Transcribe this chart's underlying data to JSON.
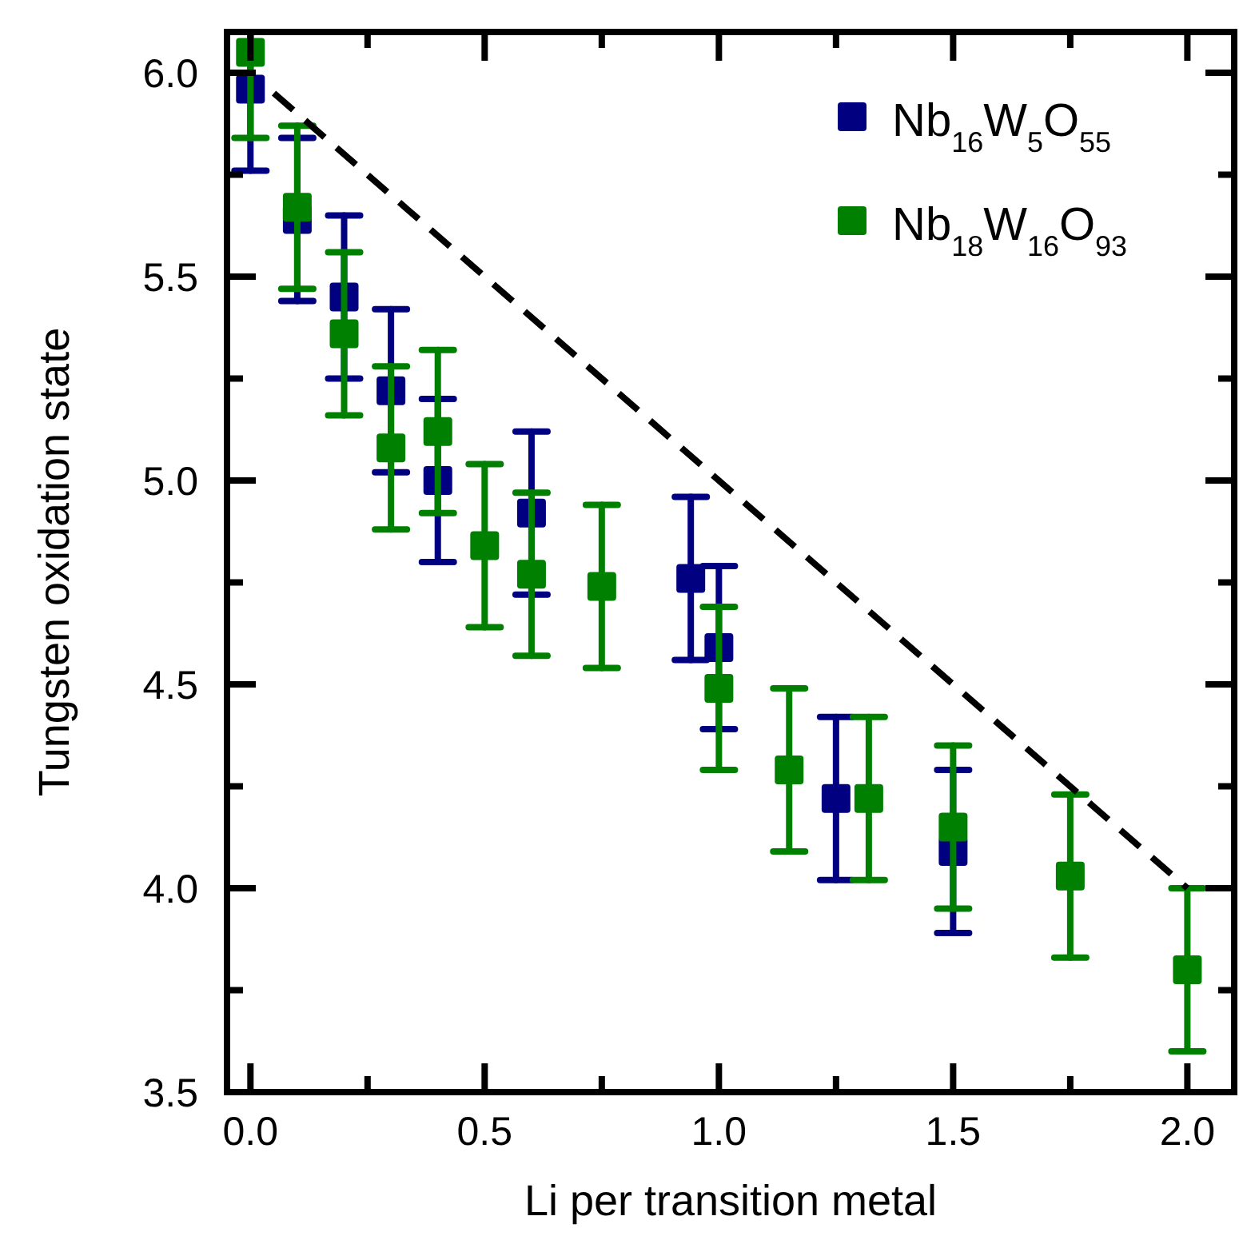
{
  "chart_data": {
    "type": "scatter",
    "xlabel": "Li per transition metal",
    "ylabel": "Tungsten oxidation state",
    "xlim": [
      -0.05,
      2.1
    ],
    "ylim": [
      3.5,
      6.1
    ],
    "xticks": [
      {
        "value": 0.25,
        "label": null
      },
      {
        "value": 0,
        "label": "0.0"
      },
      0.5,
      {
        "value": 0.75,
        "label": null
      },
      {
        "value": 1,
        "label": "1.0"
      },
      {
        "value": 1.25,
        "label": null
      },
      1.5,
      {
        "value": 1.75,
        "label": null
      },
      {
        "value": 2,
        "label": "2.0"
      }
    ],
    "yticks": [
      3.5,
      {
        "value": 3.75,
        "label": null
      },
      {
        "value": 4,
        "label": "4.0"
      },
      {
        "value": 4.25,
        "label": null
      },
      4.5,
      {
        "value": 4.75,
        "label": null
      },
      {
        "value": 5,
        "label": "5.0"
      },
      {
        "value": 5.25,
        "label": null
      },
      5.5,
      {
        "value": 5.75,
        "label": null
      },
      {
        "value": 6,
        "label": "6.0"
      }
    ],
    "marker": "square",
    "legend": "top right",
    "grid": false,
    "series": [
      {
        "name": "Nb$_{16}$W$_{5}$O$_{55}$",
        "color": "#000080",
        "x": [
          0,
          0.1,
          0.2,
          0.3,
          0.4,
          0.6,
          0.94,
          1.0,
          1.25,
          1.5
        ],
        "values": [
          5.96,
          5.64,
          5.45,
          5.22,
          5.0,
          4.92,
          4.76,
          4.59,
          4.22,
          4.09
        ],
        "errors": [
          [
            5.76,
            6.1
          ],
          0.2,
          0.2,
          0.2,
          0.2,
          0.2,
          0.2,
          0.2,
          0.2,
          0.2
        ]
      },
      {
        "name": "Nb$_{18}$W$_{16}$O$_{93}$",
        "color": "#008000",
        "x": [
          0,
          0.1,
          0.2,
          0.3,
          0.4,
          0.5,
          0.6,
          0.75,
          1.0,
          1.15,
          1.32,
          1.5,
          1.75,
          2.0
        ],
        "values": [
          6.05,
          5.67,
          5.36,
          5.08,
          5.12,
          4.84,
          4.77,
          4.74,
          4.49,
          4.29,
          4.22,
          4.15,
          4.03,
          3.8
        ],
        "errors": [
          [
            5.84,
            6.1
          ],
          0.2,
          0.2,
          0.2,
          0.2,
          0.2,
          0.2,
          0.2,
          0.2,
          0.2,
          0.2,
          0.2,
          0.2,
          0.2
        ]
      },
      {
        "type": "line",
        "color": "#000000",
        "line_style": "dashed",
        "marker": "none",
        "x": [
          0.05,
          2.0
        ],
        "values": [
          5.95,
          4.0
        ]
      }
    ]
  }
}
